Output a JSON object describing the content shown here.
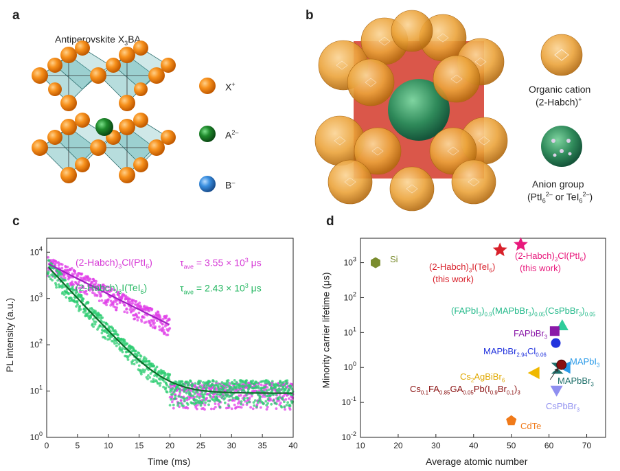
{
  "panel_a": {
    "letter": "a",
    "title": "Antiperovskite X",
    "title_sub": "3",
    "title_end": "BA",
    "legend": [
      {
        "label": "X",
        "sup": "+",
        "color": "#f08a12"
      },
      {
        "label": "A",
        "sup": "2–",
        "color": "#1f8a2c"
      },
      {
        "label": "B",
        "sup": "–",
        "color": "#3a8fe0"
      }
    ]
  },
  "panel_b": {
    "letter": "b",
    "cation_label_1": "Organic cation",
    "cation_label_2": "(2-Habch)",
    "cation_label_2_sup": "+",
    "anion_label_1": "Anion group",
    "anion_label_2a": "(PtI",
    "anion_label_2b": "6",
    "anion_label_2c": "2–",
    "anion_label_2d": " or TeI",
    "anion_label_2e": "6",
    "anion_label_2f": "2–",
    "anion_label_2g": ")"
  },
  "chart_data": [
    {
      "panel": "c",
      "type": "scatter",
      "xlabel": "Time (ms)",
      "ylabel": "PL intensity (a.u.)",
      "xlim": [
        0,
        40
      ],
      "ylim": [
        1,
        20000
      ],
      "y_scale": "log",
      "x_ticks": [
        "0",
        "5",
        "10",
        "15",
        "20",
        "25",
        "30",
        "35",
        "40"
      ],
      "y_ticks": [
        {
          "base": "10",
          "exp": "0"
        },
        {
          "base": "10",
          "exp": "1"
        },
        {
          "base": "10",
          "exp": "2"
        },
        {
          "base": "10",
          "exp": "3"
        },
        {
          "base": "10",
          "exp": "4"
        }
      ],
      "series": [
        {
          "name": "(2-Habch)3Cl(PtI6)",
          "color": "#e040e8",
          "fit_color": "#a020c0",
          "label_parts": [
            "(2-Habch)",
            "3",
            "Cl(PtI",
            "6",
            ")"
          ],
          "tau_text": " = 3.55 × 10",
          "tau_exp": "3",
          "tau_unit": " μs",
          "amplitude": 5800,
          "tau_ms": 3.55,
          "baseline": 8
        },
        {
          "name": "(2-Habch)3I(TeI6)",
          "color": "#2ecc71",
          "fit_color": "#0d6b2a",
          "label_parts": [
            "(2-Habch)",
            "3",
            "I(TeI",
            "6",
            ")"
          ],
          "tau_text": " = 2.43 × 10",
          "tau_exp": "3",
          "tau_unit": " μs",
          "amplitude": 5200,
          "tau_ms": 2.43,
          "baseline": 9
        }
      ]
    },
    {
      "panel": "d",
      "type": "scatter",
      "xlabel": "Average atomic number",
      "ylabel": "Minority carrier lifetime (μs)",
      "xlim": [
        10,
        75
      ],
      "ylim": [
        0.01,
        5000
      ],
      "y_scale": "log",
      "x_ticks": [
        "10",
        "20",
        "30",
        "40",
        "50",
        "60",
        "70"
      ],
      "y_ticks": [
        {
          "base": "10",
          "exp": "-2"
        },
        {
          "base": "10",
          "exp": "-1"
        },
        {
          "base": "10",
          "exp": "0"
        },
        {
          "base": "10",
          "exp": "1"
        },
        {
          "base": "10",
          "exp": "2"
        },
        {
          "base": "10",
          "exp": "3"
        }
      ],
      "points": [
        {
          "name": "Si",
          "x": 14,
          "y": 1000,
          "shape": "hexagon",
          "color": "#7a8c2e"
        },
        {
          "name": "(2-Habch)3I(TeI6)",
          "x": 47,
          "y": 2300,
          "shape": "star",
          "color": "#d8212b"
        },
        {
          "name": "(2-Habch)3Cl(PtI6)",
          "x": 52.5,
          "y": 3300,
          "shape": "star",
          "color": "#e8197c"
        },
        {
          "name": "(FAPbI3)0.9(MAPbBr3)0.05(CsPbBr3)0.05",
          "x": 63.5,
          "y": 16,
          "shape": "triangle-up",
          "color": "#2ecc9a"
        },
        {
          "name": "FAPbBr3",
          "x": 61.5,
          "y": 11,
          "shape": "square",
          "color": "#8a1aa8"
        },
        {
          "name": "MAPbBr2.94Cl0.06",
          "x": 61.8,
          "y": 5,
          "shape": "circle",
          "color": "#2233dd"
        },
        {
          "name": "MAPbI3",
          "x": 64.2,
          "y": 1.0,
          "shape": "triangle-left",
          "color": "#2b9be8"
        },
        {
          "name": "MAPbBr3",
          "x": 62.2,
          "y": 0.95,
          "shape": "bowtie",
          "color": "#1e6f6a"
        },
        {
          "name": "Cs0.1FA0.85GA0.05Pb(I0.9Br0.1)3",
          "x": 63.3,
          "y": 1.2,
          "shape": "ball",
          "color": "#8a1010"
        },
        {
          "name": "Cs2AgBiBr6",
          "x": 56,
          "y": 0.7,
          "shape": "triangle-left",
          "color": "#f0b800"
        },
        {
          "name": "CsPbBr3",
          "x": 62,
          "y": 0.22,
          "shape": "triangle-down",
          "color": "#8f8ff0"
        },
        {
          "name": "CdTe",
          "x": 50,
          "y": 0.03,
          "shape": "pentagon",
          "color": "#f07a1a"
        }
      ],
      "labels": {
        "si": "Si",
        "i_tei6_a": "(2-Habch)",
        "i_tei6_b": "3",
        "i_tei6_c": "I(TeI",
        "i_tei6_d": "6",
        "i_tei6_e": ")",
        "i_tei6_work": "(this work)",
        "cl_pti6_a": "(2-Habch)",
        "cl_pti6_b": "3",
        "cl_pti6_c": "Cl(PtI",
        "cl_pti6_d": "6",
        "cl_pti6_e": ")",
        "cl_pti6_work": "(this work)",
        "fa_mix_a": "(FAPbI",
        "fa_mix_b": "3",
        "fa_mix_c": ")",
        "fa_mix_d": "0.9",
        "fa_mix_e": "(MAPbBr",
        "fa_mix_f": "3",
        "fa_mix_g": ")",
        "fa_mix_h": "0.05",
        "fa_mix_i": "(CsPbBr",
        "fa_mix_j": "3",
        "fa_mix_k": ")",
        "fa_mix_l": "0.05",
        "fapbbr_a": "FAPbBr",
        "fapbbr_b": "3",
        "mapbbrcl_a": "MAPbBr",
        "mapbbrcl_b": "2.94",
        "mapbbrcl_c": "Cl",
        "mapbbrcl_d": "0.06",
        "mapbi_a": "MAPbI",
        "mapbi_b": "3",
        "mapbbr_a": "MAPbBr",
        "mapbbr_b": "3",
        "csagbi_a": "Cs",
        "csagbi_b": "2",
        "csagbi_c": "AgBiBr",
        "csagbi_d": "6",
        "csfa_a": "Cs",
        "csfa_b": "0.1",
        "csfa_c": "FA",
        "csfa_d": "0.85",
        "csfa_e": "GA",
        "csfa_f": "0.05",
        "csfa_g": "Pb(I",
        "csfa_h": "0.9",
        "csfa_i": "Br",
        "csfa_j": "0.1",
        "csfa_k": ")",
        "csfa_l": "3",
        "cspbbr_a": "CsPbBr",
        "cspbbr_b": "3",
        "cdte": "CdTe"
      }
    }
  ],
  "panel_c_letter": "c",
  "panel_d_letter": "d"
}
